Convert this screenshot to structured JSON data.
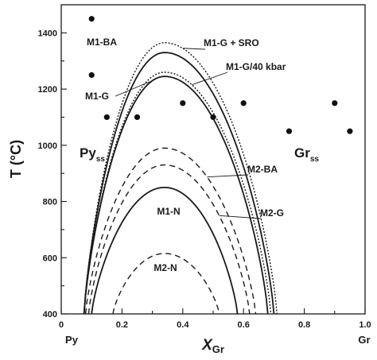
{
  "chart_data": {
    "type": "line",
    "title": "",
    "xlabel": "X",
    "xlabel_sub": "Gr",
    "ylabel": "T (°C)",
    "xlim": [
      0,
      1.0
    ],
    "ylim": [
      400,
      1500
    ],
    "x_ticks": [
      "0",
      "0.2",
      "0.4",
      "0.6",
      "0.8",
      "1.0"
    ],
    "y_ticks": [
      "400",
      "600",
      "800",
      "1000",
      "1200",
      "1400"
    ],
    "grid": false,
    "x_end_labels": {
      "left": "Py",
      "right": "Gr"
    },
    "field_labels": [
      {
        "name": "py-ss-label",
        "main": "Py",
        "sub": "ss"
      },
      {
        "name": "gr-ss-label",
        "main": "Gr",
        "sub": "ss"
      }
    ],
    "series": [
      {
        "name": "M1-G + SRO",
        "style": "dotted",
        "x_peak": 0.34,
        "T_peak": 1365,
        "x_left": 0.075,
        "x_right": 0.71
      },
      {
        "name": "M1-BA",
        "style": "solid",
        "x_peak": 0.34,
        "T_peak": 1330,
        "x_left": 0.075,
        "x_right": 0.7
      },
      {
        "name": "M1-G/40 kbar",
        "style": "dotted",
        "x_peak": 0.34,
        "T_peak": 1260,
        "x_left": 0.075,
        "x_right": 0.69
      },
      {
        "name": "M1-G",
        "style": "solid",
        "x_peak": 0.34,
        "T_peak": 1245,
        "x_left": 0.075,
        "x_right": 0.68
      },
      {
        "name": "M2-BA",
        "style": "dashed",
        "x_peak": 0.34,
        "T_peak": 990,
        "x_left": 0.08,
        "x_right": 0.64
      },
      {
        "name": "M2-G",
        "style": "dashed",
        "x_peak": 0.34,
        "T_peak": 930,
        "x_left": 0.09,
        "x_right": 0.62
      },
      {
        "name": "M1-N",
        "style": "solid",
        "x_peak": 0.34,
        "T_peak": 850,
        "x_left": 0.1,
        "x_right": 0.58
      },
      {
        "name": "M2-N",
        "style": "dashed",
        "x_peak": 0.34,
        "T_peak": 615,
        "x_left": 0.17,
        "x_right": 0.52
      }
    ],
    "points": [
      {
        "x": 0.1,
        "y": 1450
      },
      {
        "x": 0.1,
        "y": 1250
      },
      {
        "x": 0.15,
        "y": 1100
      },
      {
        "x": 0.25,
        "y": 1100
      },
      {
        "x": 0.4,
        "y": 1150
      },
      {
        "x": 0.5,
        "y": 1100
      },
      {
        "x": 0.6,
        "y": 1150
      },
      {
        "x": 0.75,
        "y": 1050
      },
      {
        "x": 0.9,
        "y": 1150
      },
      {
        "x": 0.95,
        "y": 1050
      }
    ]
  }
}
